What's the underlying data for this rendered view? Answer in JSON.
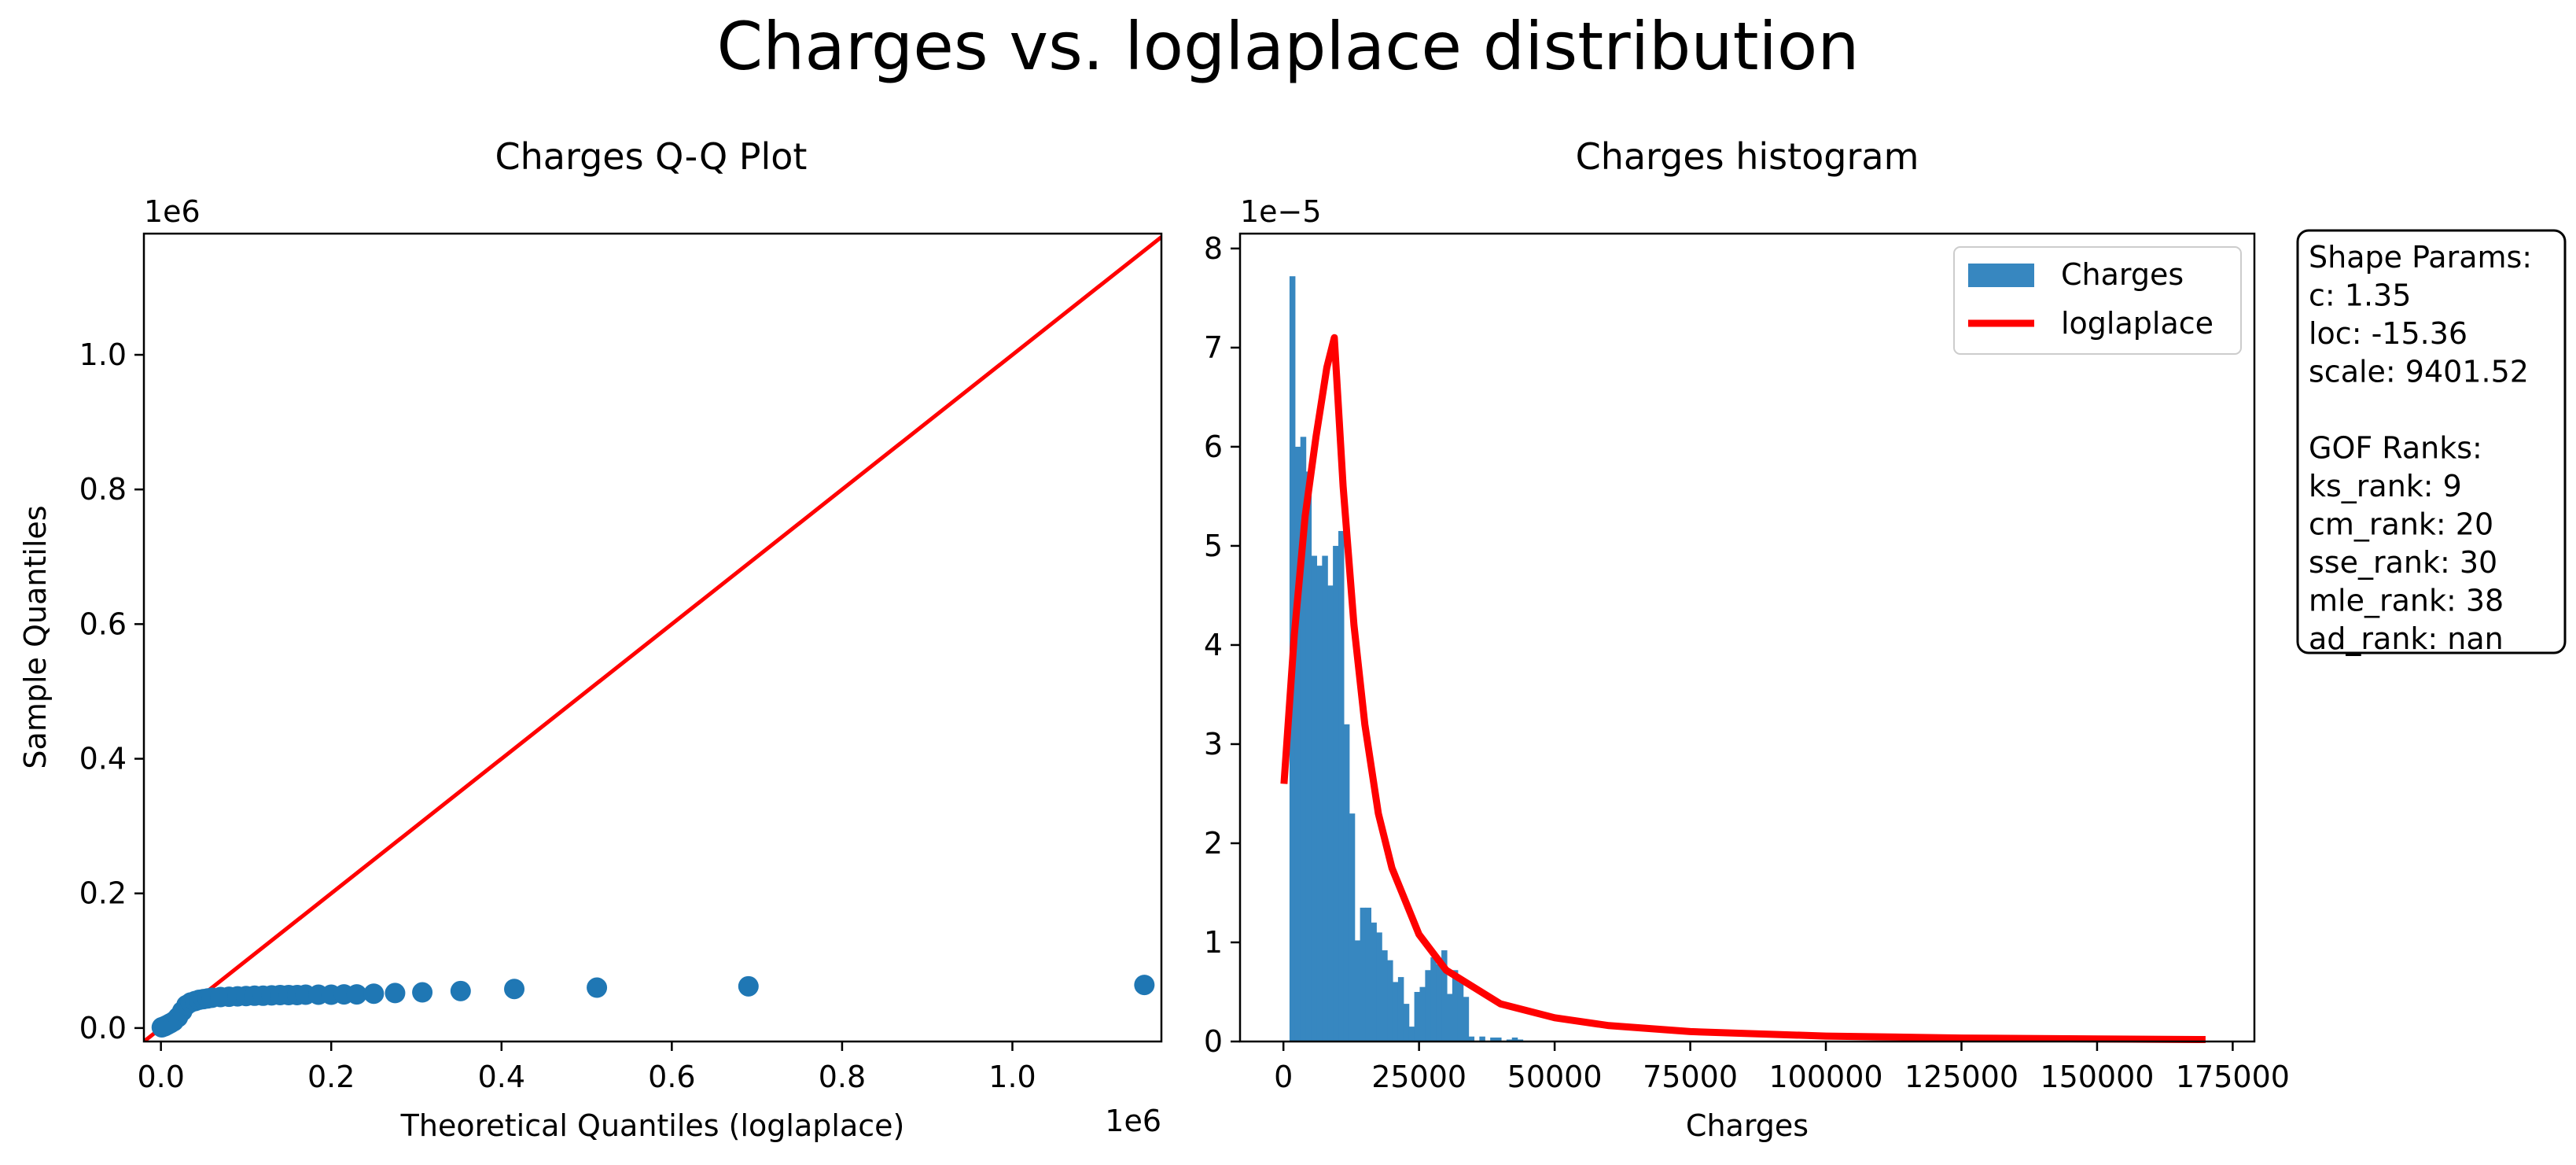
{
  "figure": {
    "title": "Charges vs. loglaplace distribution"
  },
  "chart_data": [
    {
      "type": "scatter",
      "title": "Charges Q-Q Plot",
      "xlabel": "Theoretical Quantiles (loglaplace)",
      "ylabel": "Sample Quantiles",
      "x_offset_label": "1e6",
      "y_offset_label": "1e6",
      "xlim": [
        -20000,
        1175000
      ],
      "ylim": [
        -20000,
        1180000
      ],
      "x_ticks": [
        0,
        200000,
        400000,
        600000,
        800000,
        1000000
      ],
      "x_tick_labels": [
        "0.0",
        "0.2",
        "0.4",
        "0.6",
        "0.8",
        "1.0"
      ],
      "y_ticks": [
        0,
        200000,
        400000,
        600000,
        800000,
        1000000
      ],
      "y_tick_labels": [
        "0.0",
        "0.2",
        "0.4",
        "0.6",
        "0.8",
        "1.0"
      ],
      "reference_line": {
        "color": "#ff0000",
        "x": [
          -20000,
          1175000
        ],
        "y": [
          -20000,
          1175000
        ]
      },
      "series": [
        {
          "color": "#1f77b4",
          "points": [
            [
              1000,
              1100
            ],
            [
              3000,
              2000
            ],
            [
              5000,
              3000
            ],
            [
              8000,
              5000
            ],
            [
              11000,
              7000
            ],
            [
              15000,
              10000
            ],
            [
              20000,
              16000
            ],
            [
              25000,
              25000
            ],
            [
              30000,
              34000
            ],
            [
              35000,
              38000
            ],
            [
              40000,
              40000
            ],
            [
              45000,
              42000
            ],
            [
              50000,
              43000
            ],
            [
              55000,
              44000
            ],
            [
              60000,
              45000
            ],
            [
              70000,
              46000
            ],
            [
              80000,
              46500
            ],
            [
              90000,
              47000
            ],
            [
              100000,
              47500
            ],
            [
              110000,
              48000
            ],
            [
              120000,
              48000
            ],
            [
              130000,
              48500
            ],
            [
              140000,
              49000
            ],
            [
              150000,
              49000
            ],
            [
              160000,
              49000
            ],
            [
              170000,
              49500
            ],
            [
              185000,
              49500
            ],
            [
              200000,
              49500
            ],
            [
              215000,
              50000
            ],
            [
              230000,
              50000
            ],
            [
              250000,
              51000
            ],
            [
              275000,
              52000
            ],
            [
              307000,
              53000
            ],
            [
              352000,
              55000
            ],
            [
              415000,
              58000
            ],
            [
              512000,
              60000
            ],
            [
              690000,
              62000
            ],
            [
              1155000,
              64000
            ]
          ]
        }
      ]
    },
    {
      "type": "bar",
      "title": "Charges histogram",
      "xlabel": "Charges",
      "ylabel": "",
      "y_offset_label": "1e−5",
      "xlim": [
        -8000,
        179000
      ],
      "ylim": [
        0,
        8.15
      ],
      "x_ticks": [
        0,
        25000,
        50000,
        75000,
        100000,
        125000,
        150000,
        175000
      ],
      "x_tick_labels": [
        "0",
        "25000",
        "50000",
        "75000",
        "100000",
        "125000",
        "150000",
        "175000"
      ],
      "y_ticks": [
        0,
        1,
        2,
        3,
        4,
        5,
        6,
        7,
        8
      ],
      "y_tick_labels": [
        "0",
        "1",
        "2",
        "3",
        "4",
        "5",
        "6",
        "7",
        "8"
      ],
      "bin_start": 1121,
      "bin_width": 1000,
      "series": [
        {
          "name": "Charges",
          "color": "#3787c0",
          "values": [
            7.72,
            6.0,
            6.1,
            5.75,
            4.9,
            4.8,
            4.9,
            4.6,
            5.0,
            5.15,
            3.2,
            2.3,
            1.02,
            1.35,
            1.35,
            1.2,
            1.1,
            0.92,
            0.82,
            0.6,
            0.65,
            0.38,
            0.15,
            0.5,
            0.55,
            0.72,
            0.85,
            0.78,
            0.92,
            0.48,
            0.72,
            0.6,
            0.45,
            0.05,
            0.0,
            0.05,
            0.0,
            0.04,
            0.04,
            0.0,
            0.02,
            0.04,
            0.02,
            0.0,
            0.0,
            0.0,
            0.0,
            0.0,
            0.0,
            0.0
          ]
        },
        {
          "name": "loglaplace",
          "color": "#ff0000",
          "type": "line",
          "x": [
            100,
            2000,
            4000,
            6000,
            8000,
            9385,
            11000,
            13000,
            15000,
            17500,
            20000,
            25000,
            30000,
            40000,
            50000,
            60000,
            75000,
            100000,
            125000,
            150000,
            170000
          ],
          "values": [
            2.6,
            4.1,
            5.3,
            6.1,
            6.8,
            7.1,
            5.6,
            4.2,
            3.2,
            2.3,
            1.75,
            1.08,
            0.72,
            0.38,
            0.24,
            0.16,
            0.1,
            0.055,
            0.035,
            0.025,
            0.02
          ]
        }
      ],
      "legend": {
        "placement": "top-right",
        "entries": [
          "Charges",
          "loglaplace"
        ]
      }
    }
  ],
  "info_box": {
    "lines": [
      "Shape Params:",
      "c: 1.35",
      "loc: -15.36",
      "scale: 9401.52",
      "",
      "GOF Ranks:",
      "ks_rank: 9",
      "cm_rank: 20",
      "sse_rank: 30",
      "mle_rank: 38",
      "ad_rank: nan"
    ]
  }
}
